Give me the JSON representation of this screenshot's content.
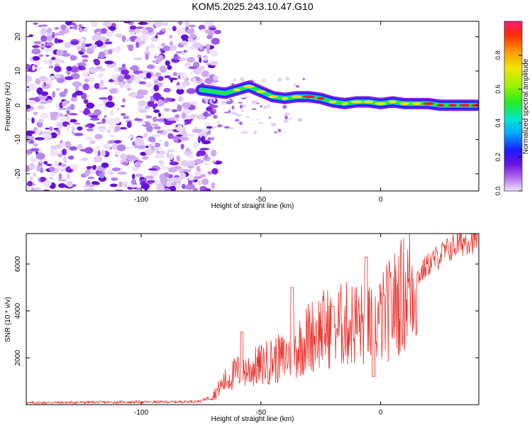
{
  "chart_data": [
    {
      "type": "heatmap",
      "title": "KOM5.2025.243.10.47.G10",
      "xlabel": "Height of straight line (km)",
      "ylabel": "Frequency (Hz)",
      "xlim": [
        -148,
        41
      ],
      "ylim": [
        -25,
        24.5
      ],
      "x_ticks": [
        -100,
        -50,
        0
      ],
      "y_ticks": [
        -20,
        -10,
        0,
        10,
        20
      ],
      "noise_region_x": [
        -148,
        -71
      ],
      "signal_track": {
        "x": [
          -75,
          -70,
          -65,
          -60,
          -55,
          -50,
          -45,
          -40,
          -35,
          -30,
          -25,
          -20,
          -15,
          -10,
          -5,
          0,
          5,
          10,
          15,
          20,
          25,
          30,
          35,
          40
        ],
        "y": [
          4.5,
          4,
          3.5,
          4.5,
          5.5,
          4,
          2.5,
          2,
          2.5,
          2.5,
          2,
          1,
          0.5,
          1,
          1,
          0.5,
          1,
          0.5,
          0.5,
          0.5,
          0,
          0,
          0,
          0
        ]
      },
      "colorbar": {
        "label": "Normalized spectral amplitude",
        "range": [
          0,
          1
        ],
        "ticks": [
          "0.0",
          "0.2",
          "0.4",
          "0.6",
          "0.8"
        ]
      }
    },
    {
      "type": "line",
      "title": "",
      "xlabel": "Height of straight line (km)",
      "ylabel": "SNR (10 * v/v)",
      "xlim": [
        -148,
        41
      ],
      "ylim": [
        0,
        7300
      ],
      "x_ticks": [
        -100,
        -50,
        0
      ],
      "y_ticks": [
        2000,
        4000,
        6000
      ],
      "series": [
        {
          "name": "SNR",
          "color": "#e8302a",
          "x": [
            -148,
            -120,
            -100,
            -85,
            -75,
            -70,
            -65,
            -60,
            -55,
            -50,
            -45,
            -40,
            -35,
            -30,
            -25,
            -20,
            -15,
            -10,
            -5,
            0,
            5,
            10,
            15,
            20,
            25,
            30,
            35,
            40
          ],
          "y": [
            80,
            100,
            110,
            120,
            150,
            400,
            1000,
            1400,
            1500,
            1700,
            1900,
            2000,
            2400,
            2900,
            3200,
            3300,
            3400,
            3500,
            3300,
            3600,
            4200,
            4800,
            5400,
            6000,
            6400,
            6700,
            7000,
            7100
          ]
        }
      ],
      "spikes": [
        {
          "x": -58,
          "y": 3100
        },
        {
          "x": -37,
          "y": 5000
        },
        {
          "x": -20,
          "y": 4200
        },
        {
          "x": -6,
          "y": 6300
        },
        {
          "x": -3,
          "y": 1200
        }
      ]
    }
  ]
}
